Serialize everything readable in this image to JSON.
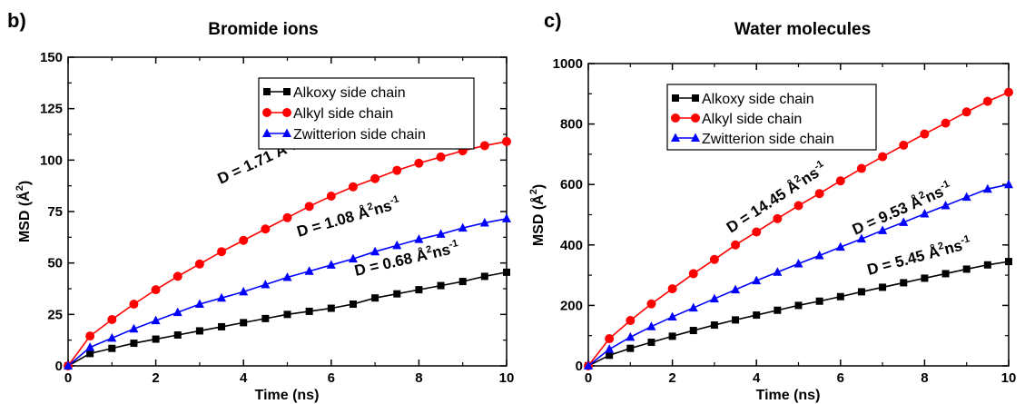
{
  "chart_data": [
    {
      "type": "line",
      "panel_label": "b)",
      "title": "Bromide ions",
      "xlabel": "Time (ns)",
      "ylabel_main": "MSD (Å",
      "ylabel_sup": "2",
      "ylabel_end": ")",
      "xlim": [
        0,
        10
      ],
      "ylim": [
        0,
        150
      ],
      "xticks": [
        0,
        2,
        4,
        6,
        8,
        10
      ],
      "yticks": [
        0,
        25,
        50,
        75,
        100,
        125,
        150
      ],
      "legend_position": "top-right",
      "series": [
        {
          "name": "Alkoxy side chain",
          "color": "#000000",
          "marker": "square",
          "x": [
            0,
            0.5,
            1,
            1.5,
            2,
            2.5,
            3,
            3.5,
            4,
            4.5,
            5,
            5.5,
            6,
            6.5,
            7,
            7.5,
            8,
            8.5,
            9,
            9.5,
            10
          ],
          "y": [
            0,
            6,
            8.5,
            11,
            13,
            15,
            17,
            19,
            21,
            23,
            25,
            26.5,
            28,
            30,
            33,
            35,
            37,
            39,
            41,
            43.5,
            45.5
          ],
          "annotation": {
            "pre": "D = 0.68 Å",
            "sup": "2",
            "mid": "ns",
            "sup2": "-1"
          }
        },
        {
          "name": "Alkyl side chain",
          "color": "#ff0000",
          "marker": "circle",
          "x": [
            0,
            0.5,
            1,
            1.5,
            2,
            2.5,
            3,
            3.5,
            4,
            4.5,
            5,
            5.5,
            6,
            6.5,
            7,
            7.5,
            8,
            8.5,
            9,
            9.5,
            10
          ],
          "y": [
            0,
            14.5,
            22.5,
            30,
            37,
            43.5,
            49.5,
            55.5,
            61,
            66.5,
            72,
            77.5,
            82.5,
            87,
            91,
            95,
            98.5,
            101.5,
            104.5,
            107,
            109
          ],
          "annotation": {
            "pre": "D = 1.71 Å",
            "sup": "2",
            "mid": "ns",
            "sup2": "-1"
          }
        },
        {
          "name": "Zwitterion side chain",
          "color": "#0000ff",
          "marker": "triangle",
          "x": [
            0,
            0.5,
            1,
            1.5,
            2,
            2.5,
            3,
            3.5,
            4,
            4.5,
            5,
            5.5,
            6,
            6.5,
            7,
            7.5,
            8,
            8.5,
            9,
            9.5,
            10
          ],
          "y": [
            0,
            9,
            13.5,
            18,
            22,
            26,
            30,
            33,
            36,
            39.5,
            43,
            46,
            49,
            52,
            55.5,
            58.5,
            61.5,
            64,
            67,
            69.5,
            71.5
          ],
          "annotation": {
            "pre": "D = 1.08 Å",
            "sup": "2",
            "mid": "ns",
            "sup2": "-1"
          }
        }
      ]
    },
    {
      "type": "line",
      "panel_label": "c)",
      "title": "Water molecules",
      "xlabel": "Time (ns)",
      "ylabel_main": "MSD (Å",
      "ylabel_sup": "2",
      "ylabel_end": ")",
      "xlim": [
        0,
        10
      ],
      "ylim": [
        0,
        1000
      ],
      "xticks": [
        0,
        2,
        4,
        6,
        8,
        10
      ],
      "yticks": [
        0,
        200,
        400,
        600,
        800,
        1000
      ],
      "legend_position": "top-right",
      "series": [
        {
          "name": "Alkoxy side chain",
          "color": "#000000",
          "marker": "square",
          "x": [
            0,
            0.5,
            1,
            1.5,
            2,
            2.5,
            3,
            3.5,
            4,
            4.5,
            5,
            5.5,
            6,
            6.5,
            7,
            7.5,
            8,
            8.5,
            9,
            9.5,
            10
          ],
          "y": [
            0,
            35,
            58,
            78,
            98,
            117,
            135,
            152,
            168,
            184,
            200,
            214,
            229,
            245,
            260,
            275,
            290,
            305,
            320,
            334,
            345
          ],
          "annotation": {
            "pre": "D = 5.45 Å",
            "sup": "2",
            "mid": "ns",
            "sup2": "-1"
          }
        },
        {
          "name": "Alkyl side chain",
          "color": "#ff0000",
          "marker": "circle",
          "x": [
            0,
            0.5,
            1,
            1.5,
            2,
            2.5,
            3,
            3.5,
            4,
            4.5,
            5,
            5.5,
            6,
            6.5,
            7,
            7.5,
            8,
            8.5,
            9,
            9.5,
            10
          ],
          "y": [
            0,
            90,
            150,
            205,
            255,
            305,
            352,
            400,
            443,
            487,
            530,
            570,
            612,
            653,
            692,
            730,
            767,
            803,
            840,
            875,
            905
          ],
          "annotation": {
            "pre": "D = 14.45 Å",
            "sup": "2",
            "mid": "ns",
            "sup2": "-1"
          }
        },
        {
          "name": "Zwitterion side chain",
          "color": "#0000ff",
          "marker": "triangle",
          "x": [
            0,
            0.5,
            1,
            1.5,
            2,
            2.5,
            3,
            3.5,
            4,
            4.5,
            5,
            5.5,
            6,
            6.5,
            7,
            7.5,
            8,
            8.5,
            9,
            9.5,
            10
          ],
          "y": [
            0,
            55,
            95,
            130,
            162,
            192,
            222,
            252,
            282,
            310,
            338,
            365,
            393,
            420,
            448,
            475,
            503,
            530,
            558,
            585,
            600
          ],
          "annotation": {
            "pre": "D = 9.53 Å",
            "sup": "2",
            "mid": "ns",
            "sup2": "-1"
          }
        }
      ]
    }
  ]
}
